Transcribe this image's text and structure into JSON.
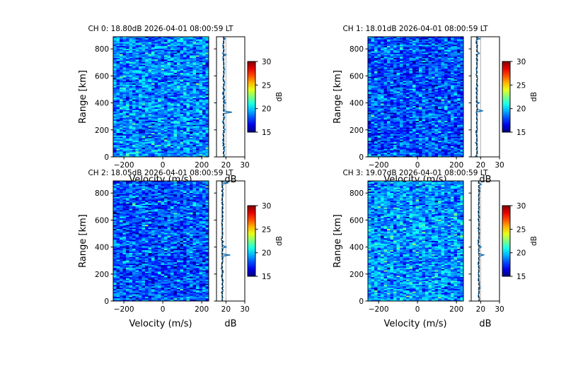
{
  "chart_data": {
    "type": "heatmap",
    "colormap": "jet",
    "panels": [
      {
        "channel": 0,
        "title": "CH 0: 18.80dB 2026-04-01 08:00:59 LT",
        "noise_db": 18.8,
        "profile_spikes": [
          {
            "range_km": 335,
            "db": 23.0
          },
          {
            "range_km": 760,
            "db": 20.0
          },
          {
            "range_km": 405,
            "db": 19.8
          },
          {
            "range_km": 880,
            "db": 19.5
          }
        ]
      },
      {
        "channel": 1,
        "title": "CH 1: 18.01dB 2026-04-01 08:00:59 LT",
        "noise_db": 18.01,
        "profile_spikes": [
          {
            "range_km": 340,
            "db": 21.0
          },
          {
            "range_km": 765,
            "db": 19.3
          },
          {
            "range_km": 875,
            "db": 19.5
          },
          {
            "range_km": 405,
            "db": 19.2
          }
        ]
      },
      {
        "channel": 2,
        "title": "CH 2: 18.05dB 2026-04-01 08:00:59 LT",
        "noise_db": 18.05,
        "profile_spikes": [
          {
            "range_km": 340,
            "db": 22.0
          },
          {
            "range_km": 875,
            "db": 21.0
          },
          {
            "range_km": 400,
            "db": 20.0
          }
        ]
      },
      {
        "channel": 3,
        "title": "CH 3: 19.07dB 2026-04-01 08:00:59 LT",
        "noise_db": 19.07,
        "profile_spikes": [
          {
            "range_km": 340,
            "db": 21.5
          },
          {
            "range_km": 400,
            "db": 20.2
          },
          {
            "range_km": 870,
            "db": 20.3
          }
        ]
      }
    ],
    "spectrum": {
      "xlabel": "Velocity (m/s)",
      "ylabel": "Range [km]",
      "xlim": [
        -255,
        236
      ],
      "ylim": [
        0,
        890
      ],
      "xticks": [
        -200,
        0,
        200
      ],
      "yticks": [
        0,
        200,
        400,
        600,
        800
      ]
    },
    "profile": {
      "xlabel": "dB",
      "xlim": [
        15,
        30
      ],
      "xticks": [
        20,
        30
      ],
      "reference_line_db": 20,
      "line_color": "#1f77b4"
    },
    "colorbar": {
      "label": "dB",
      "range": [
        15,
        30
      ],
      "ticks": [
        15,
        20,
        25,
        30
      ]
    },
    "grid": false
  }
}
